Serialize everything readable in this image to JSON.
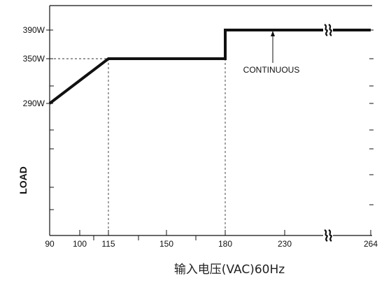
{
  "chart_data": {
    "type": "line",
    "title": "",
    "xlabel": "输入电压(VAC)60Hz",
    "ylabel": "LOAD",
    "x_ticks": [
      90,
      100,
      115,
      150,
      180,
      230,
      264
    ],
    "x_tick_labels": [
      "90",
      "100",
      "115",
      "150",
      "180",
      "230",
      "264"
    ],
    "y_ticks": [
      290,
      350,
      390
    ],
    "y_tick_labels": [
      "290W",
      "350W",
      "390W"
    ],
    "axis_breaks": [
      "x-axis between 230 and 264",
      "curve between 230 and 264"
    ],
    "series": [
      {
        "x": [
          90,
          115,
          180,
          180,
          264
        ],
        "y": [
          290,
          350,
          350,
          390,
          390
        ]
      }
    ],
    "reference_lines": [
      {
        "from": [
          90,
          350
        ],
        "to": [
          115,
          350
        ],
        "style": "dashed"
      },
      {
        "from": [
          115,
          350
        ],
        "to": [
          115,
          "axis"
        ],
        "style": "dashed"
      },
      {
        "from": [
          180,
          350
        ],
        "to": [
          180,
          "axis"
        ],
        "style": "dashed"
      }
    ],
    "annotations": [
      {
        "text": "CONTINUOUS",
        "points_to": [
          220,
          390
        ]
      }
    ],
    "grid": false,
    "colors": {
      "line": "#111111",
      "axes": "#111111",
      "dashed": "#333333"
    }
  }
}
